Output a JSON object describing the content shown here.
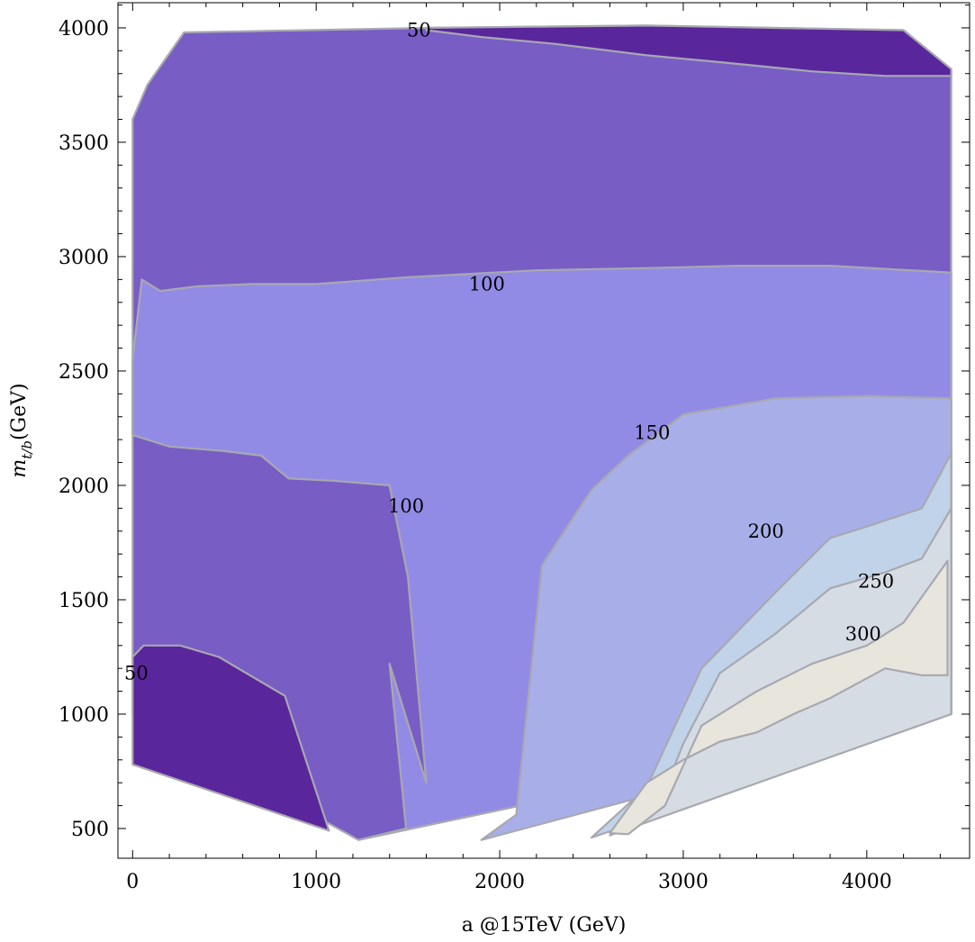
{
  "chart_data": {
    "type": "contour",
    "xlabel": "a @15TeV (GeV)",
    "ylabel": {
      "base": "m",
      "subscript": "t/b",
      "accent": "~",
      "unit": "(GeV)"
    },
    "xlim": [
      -80,
      4560
    ],
    "ylim": [
      370,
      4110
    ],
    "xticks": [
      0,
      1000,
      2000,
      3000,
      4000
    ],
    "yticks": [
      500,
      1000,
      1500,
      2000,
      2500,
      3000,
      3500,
      4000
    ],
    "xtick_labels": [
      "0",
      "1000",
      "2000",
      "3000",
      "4000"
    ],
    "ytick_labels": [
      "500",
      "1000",
      "1500",
      "2000",
      "2500",
      "3000",
      "3500",
      "4000"
    ],
    "grid": false,
    "colors": {
      "below_50": "#5a269c",
      "50_100": "#785dc5",
      "100_150": "#928be5",
      "150_200": "#a8afe8",
      "200_250": "#c0d3e8",
      "250_300": "#d6dce3",
      "above_300": "#e7e5dc",
      "contour_line": "#a8a8b0"
    },
    "regions": [
      {
        "level": "50_100",
        "points": [
          [
            0,
            3600
          ],
          [
            80,
            3750
          ],
          [
            280,
            3980
          ],
          [
            1650,
            4000
          ],
          [
            2800,
            4010
          ],
          [
            4200,
            3990
          ],
          [
            4460,
            3820
          ],
          [
            4460,
            1000
          ],
          [
            1230,
            450
          ],
          [
            0,
            1000
          ]
        ]
      },
      {
        "level": "below_50",
        "points": [
          [
            1600,
            4000
          ],
          [
            2800,
            4010
          ],
          [
            4200,
            3990
          ],
          [
            4460,
            3820
          ],
          [
            4460,
            3790
          ],
          [
            4100,
            3790
          ],
          [
            3700,
            3810
          ],
          [
            3200,
            3850
          ],
          [
            2800,
            3880
          ],
          [
            2300,
            3930
          ],
          [
            1900,
            3960
          ],
          [
            1600,
            3990
          ]
        ]
      },
      {
        "level": "below_50",
        "points": [
          [
            0,
            1000
          ],
          [
            0,
            1250
          ],
          [
            60,
            1300
          ],
          [
            260,
            1300
          ],
          [
            470,
            1250
          ],
          [
            830,
            1080
          ],
          [
            1070,
            490
          ],
          [
            0,
            780
          ]
        ]
      },
      {
        "level": "100_150",
        "points": [
          [
            0,
            2550
          ],
          [
            50,
            2900
          ],
          [
            150,
            2850
          ],
          [
            350,
            2870
          ],
          [
            650,
            2880
          ],
          [
            1000,
            2880
          ],
          [
            1500,
            2910
          ],
          [
            2200,
            2940
          ],
          [
            2800,
            2950
          ],
          [
            3300,
            2960
          ],
          [
            3800,
            2960
          ],
          [
            4460,
            2930
          ],
          [
            4460,
            1000
          ],
          [
            1230,
            450
          ],
          [
            1490,
            500
          ],
          [
            1400,
            1220
          ],
          [
            1600,
            700
          ],
          [
            1500,
            1600
          ],
          [
            1400,
            2000
          ],
          [
            1100,
            2020
          ],
          [
            850,
            2030
          ],
          [
            700,
            2130
          ],
          [
            500,
            2150
          ],
          [
            200,
            2170
          ],
          [
            0,
            2220
          ]
        ]
      },
      {
        "level": "150_200",
        "points": [
          [
            1900,
            450
          ],
          [
            2090,
            560
          ],
          [
            2230,
            1650
          ],
          [
            2500,
            1980
          ],
          [
            2700,
            2130
          ],
          [
            3000,
            2310
          ],
          [
            3500,
            2380
          ],
          [
            4000,
            2390
          ],
          [
            4460,
            2380
          ],
          [
            4460,
            1000
          ]
        ]
      },
      {
        "level": "200_250",
        "points": [
          [
            2500,
            460
          ],
          [
            2800,
            680
          ],
          [
            3100,
            1200
          ],
          [
            3500,
            1530
          ],
          [
            3800,
            1770
          ],
          [
            4000,
            1820
          ],
          [
            4300,
            1900
          ],
          [
            4460,
            2140
          ],
          [
            4460,
            1000
          ]
        ]
      },
      {
        "level": "250_300",
        "points": [
          [
            2600,
            470
          ],
          [
            2900,
            670
          ],
          [
            3000,
            870
          ],
          [
            3200,
            1180
          ],
          [
            3500,
            1350
          ],
          [
            3800,
            1550
          ],
          [
            4100,
            1620
          ],
          [
            4300,
            1680
          ],
          [
            4460,
            1900
          ],
          [
            4460,
            1000
          ]
        ]
      },
      {
        "level": "above_300",
        "points": [
          [
            2700,
            475
          ],
          [
            2900,
            600
          ],
          [
            3100,
            950
          ],
          [
            3400,
            1100
          ],
          [
            3700,
            1220
          ],
          [
            4000,
            1300
          ],
          [
            4200,
            1400
          ],
          [
            4440,
            1670
          ],
          [
            4440,
            1170
          ],
          [
            4300,
            1170
          ],
          [
            4100,
            1200
          ],
          [
            3800,
            1070
          ],
          [
            3600,
            1000
          ],
          [
            3400,
            920
          ],
          [
            3200,
            880
          ],
          [
            3000,
            800
          ],
          [
            2800,
            700
          ],
          [
            2600,
            480
          ]
        ]
      }
    ],
    "contour_labels": [
      {
        "text": "50",
        "x": 1560,
        "y": 3990
      },
      {
        "text": "100",
        "x": 1930,
        "y": 2880
      },
      {
        "text": "150",
        "x": 2830,
        "y": 2230
      },
      {
        "text": "100",
        "x": 1490,
        "y": 1910
      },
      {
        "text": "200",
        "x": 3450,
        "y": 1800
      },
      {
        "text": "250",
        "x": 4050,
        "y": 1580
      },
      {
        "text": "300",
        "x": 3980,
        "y": 1350
      },
      {
        "text": "50",
        "x": 20,
        "y": 1180
      }
    ]
  }
}
